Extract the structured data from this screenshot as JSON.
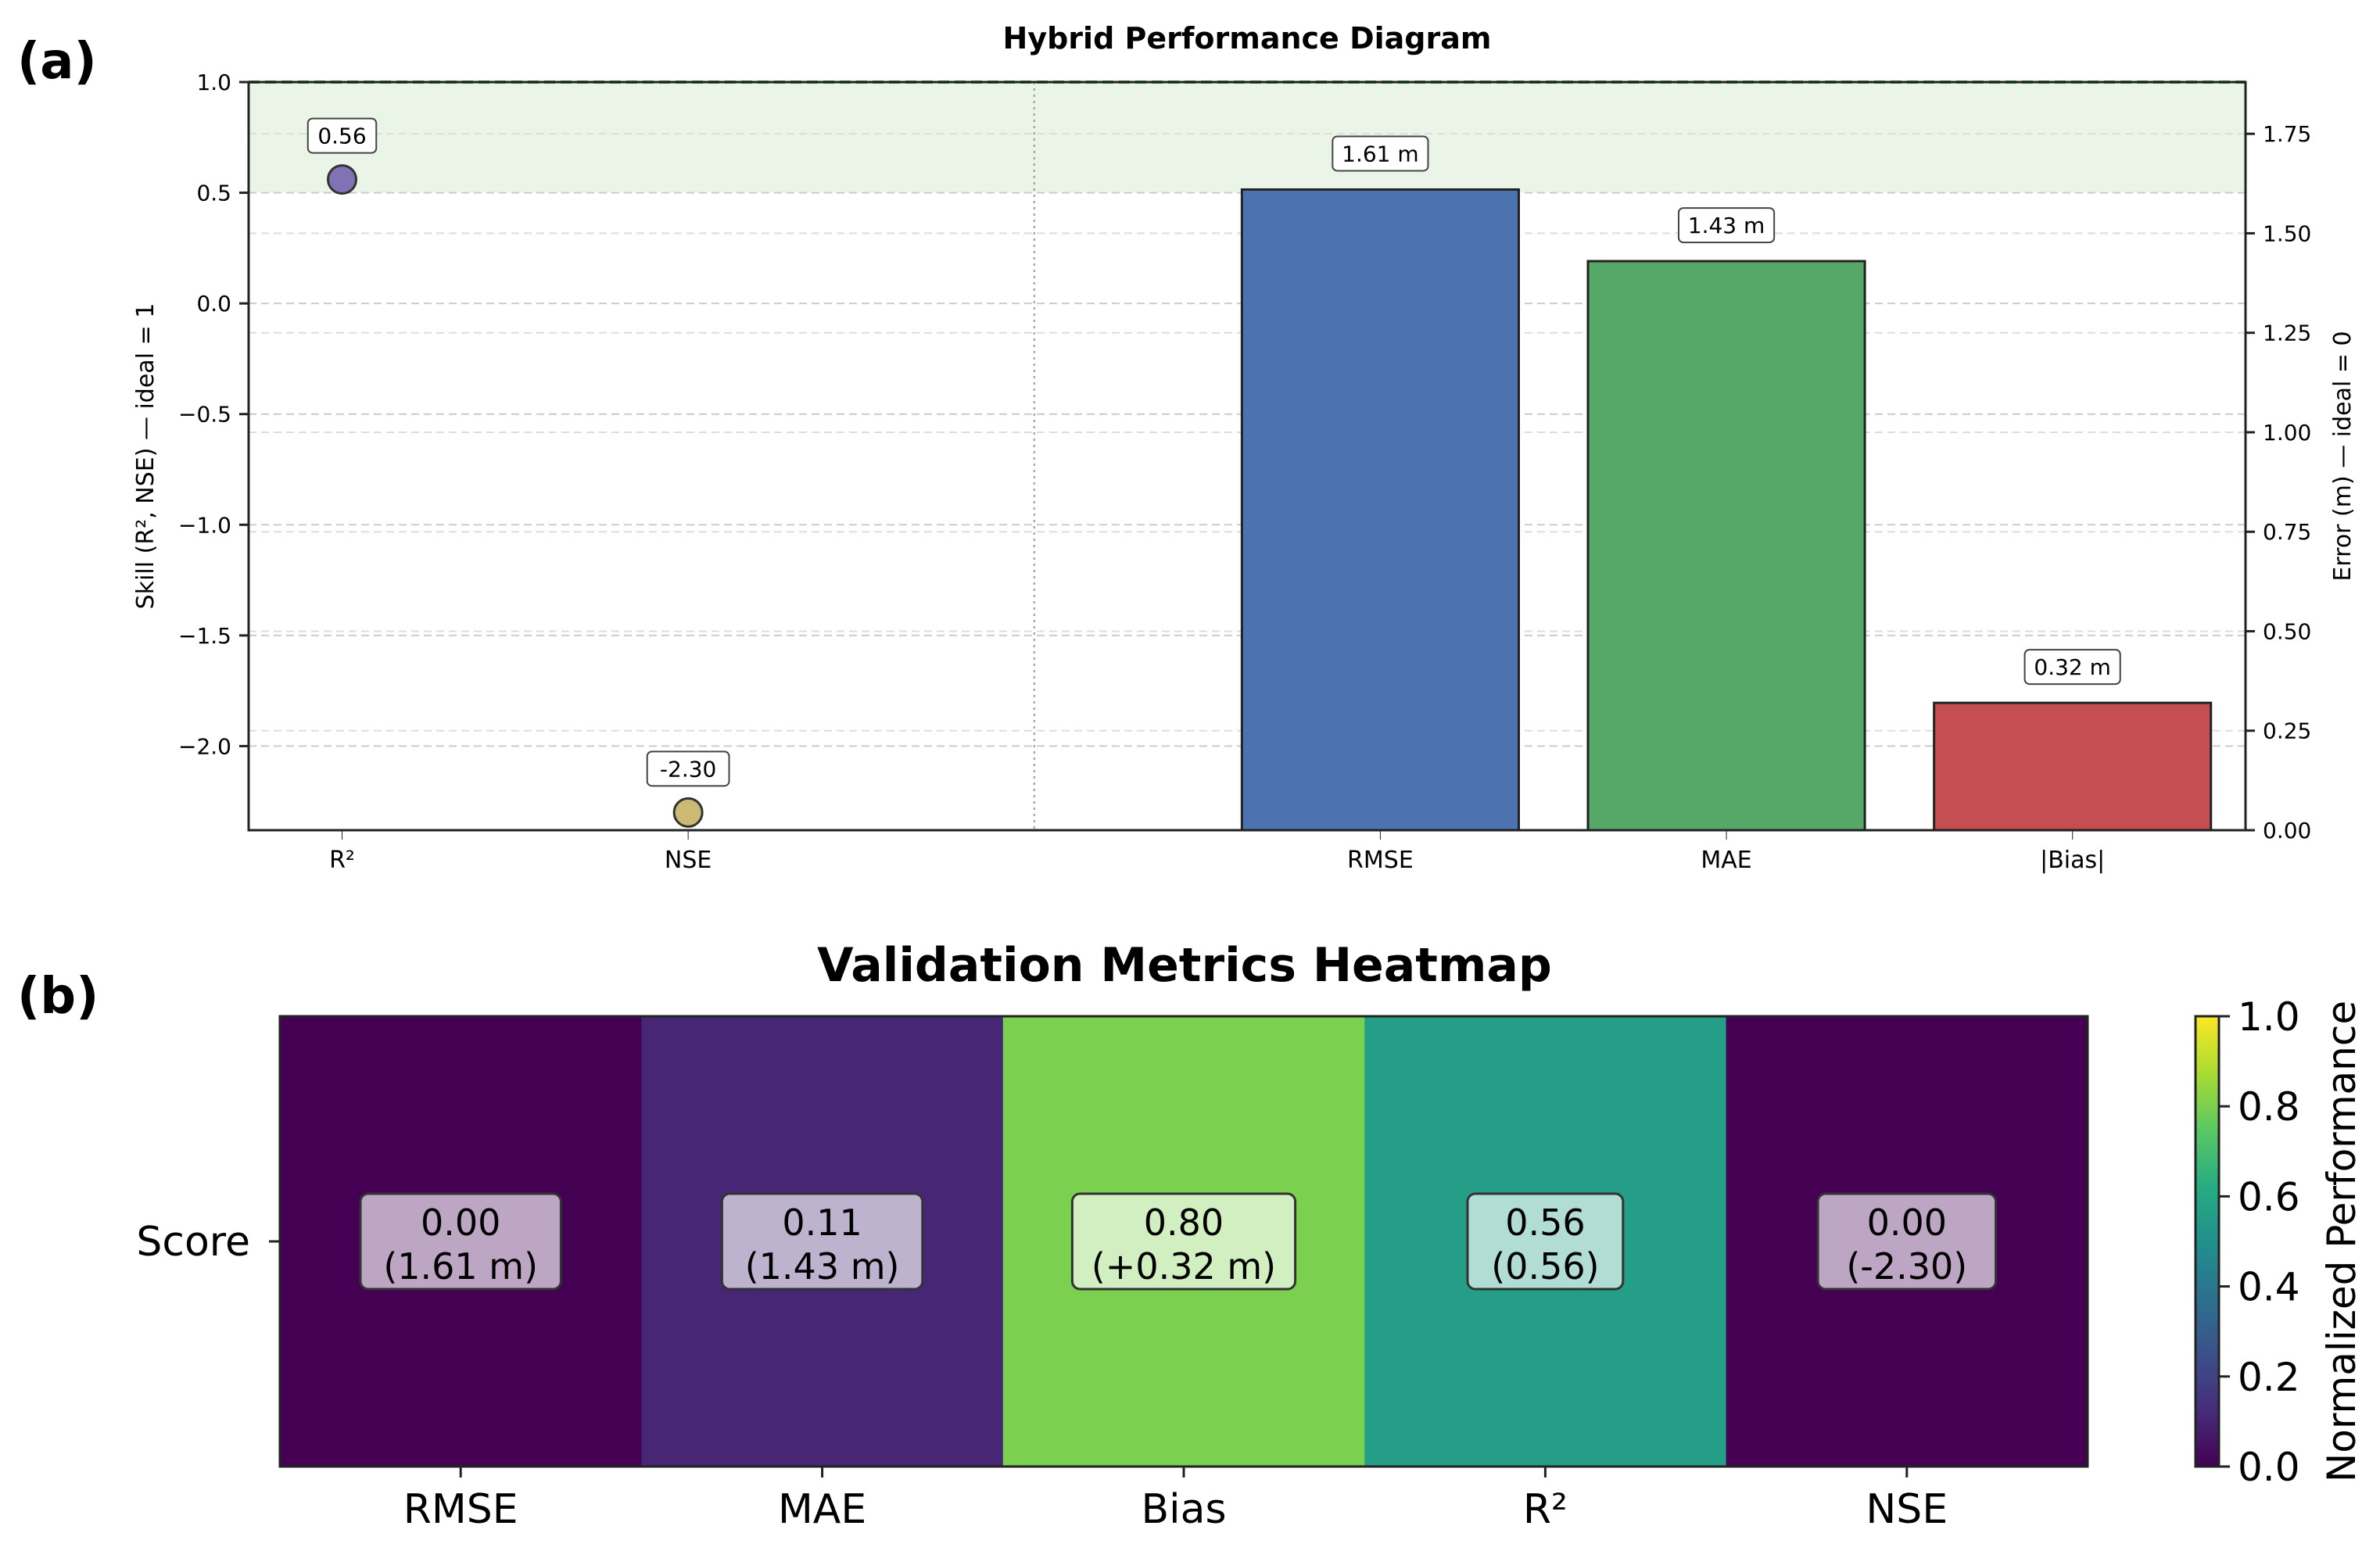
{
  "panel_labels": [
    "(a)",
    "(b)"
  ],
  "chart_data": [
    {
      "type": "bar",
      "title": "Hybrid Performance Diagram",
      "skill": {
        "categories": [
          "R²",
          "NSE"
        ],
        "values": [
          0.56,
          -2.3
        ],
        "labels": [
          "0.56",
          "-2.30"
        ],
        "colors": [
          "#8172b3",
          "#ccb974"
        ],
        "ylabel": "Skill (R², NSE)  —  ideal = 1",
        "ylim": [
          -2.38,
          1.0
        ],
        "yticks": [
          1.0,
          0.5,
          0.0,
          -0.5,
          -1.0,
          -1.5,
          -2.0
        ],
        "ytick_labels": [
          "1.0",
          "0.5",
          "0.0",
          "−0.5",
          "−1.0",
          "−1.5",
          "−2.0"
        ],
        "good_band": [
          0.5,
          1.0
        ],
        "ideal_line": 1.0
      },
      "error": {
        "categories": [
          "RMSE",
          "MAE",
          "|Bias|"
        ],
        "values": [
          1.61,
          1.43,
          0.32
        ],
        "labels": [
          "1.61 m",
          "1.43 m",
          "0.32 m"
        ],
        "colors": [
          "#4c72b0",
          "#55a868",
          "#c44e52"
        ],
        "ylabel": "Error (m)  —  ideal = 0",
        "ylim": [
          0.0,
          1.88
        ],
        "yticks": [
          0.0,
          0.25,
          0.5,
          0.75,
          1.0,
          1.25,
          1.5,
          1.75
        ],
        "ytick_labels": [
          "0.00",
          "0.25",
          "0.50",
          "0.75",
          "1.00",
          "1.25",
          "1.50",
          "1.75"
        ]
      },
      "grid": true
    },
    {
      "type": "heatmap",
      "title": "Validation Metrics Heatmap",
      "row_label": "Score",
      "categories": [
        "RMSE",
        "MAE",
        "Bias",
        "R²",
        "NSE"
      ],
      "values": [
        0.0,
        0.11,
        0.8,
        0.56,
        0.0
      ],
      "raw_labels": [
        "(1.61 m)",
        "(1.43 m)",
        "(+0.32 m)",
        "(0.56)",
        "(-2.30)"
      ],
      "value_labels": [
        "0.00",
        "0.11",
        "0.80",
        "0.56",
        "0.00"
      ],
      "colormap": "viridis",
      "colorbar": {
        "label": "Normalized Performance",
        "range": [
          0.0,
          1.0
        ],
        "ticks": [
          0.0,
          0.2,
          0.4,
          0.6,
          0.8,
          1.0
        ],
        "tick_labels": [
          "0.0",
          "0.2",
          "0.4",
          "0.6",
          "0.8",
          "1.0"
        ]
      }
    }
  ]
}
